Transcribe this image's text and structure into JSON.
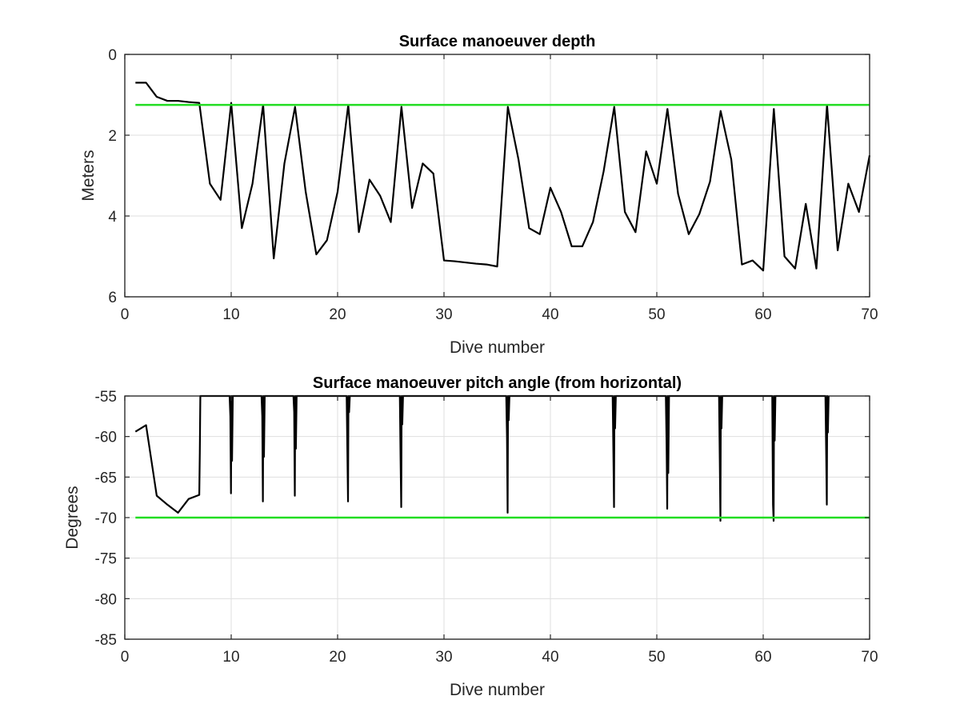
{
  "colors": {
    "data_line": "#000000",
    "threshold_line": "#22dd22",
    "grid": "#dfdfdf",
    "axes": "#262626"
  },
  "chart_data": [
    {
      "type": "line",
      "title": "Surface manoeuver depth",
      "xlabel": "Dive number",
      "ylabel": "Meters",
      "xlim": [
        0,
        70
      ],
      "ylim": [
        0,
        6
      ],
      "y_reversed": true,
      "grid": true,
      "x_ticks": [
        0,
        10,
        20,
        30,
        40,
        50,
        60,
        70
      ],
      "y_ticks": [
        0,
        2,
        4,
        6
      ],
      "series": [
        {
          "color": "#000000",
          "x": [
            1,
            2,
            3,
            4,
            5,
            6,
            7,
            8,
            9,
            10,
            11,
            12,
            13,
            14,
            15,
            16,
            17,
            18,
            19,
            20,
            21,
            22,
            23,
            24,
            25,
            26,
            27,
            28,
            29,
            30,
            31,
            32,
            33,
            34,
            35,
            36,
            37,
            38,
            39,
            40,
            41,
            42,
            43,
            44,
            45,
            46,
            47,
            48,
            49,
            50,
            51,
            52,
            53,
            54,
            55,
            56,
            57,
            58,
            59,
            60,
            61,
            62,
            63,
            64,
            65,
            66,
            67,
            68,
            69,
            70
          ],
          "y": [
            0.7,
            0.7,
            1.05,
            1.15,
            1.15,
            1.18,
            1.2,
            3.2,
            3.6,
            1.2,
            4.3,
            3.2,
            1.25,
            5.05,
            2.7,
            1.3,
            3.4,
            4.95,
            4.6,
            3.4,
            1.25,
            4.4,
            3.1,
            3.5,
            4.15,
            1.3,
            3.8,
            2.7,
            2.95,
            5.1,
            5.12,
            5.15,
            5.18,
            5.2,
            5.25,
            1.3,
            2.6,
            4.3,
            4.45,
            3.3,
            3.9,
            4.75,
            4.75,
            4.15,
            2.9,
            1.3,
            3.9,
            4.4,
            2.4,
            3.2,
            1.35,
            3.45,
            4.45,
            3.95,
            3.15,
            1.4,
            2.6,
            5.2,
            5.1,
            5.35,
            1.35,
            5.0,
            5.3,
            3.7,
            5.3,
            1.25,
            4.85,
            3.2,
            3.9,
            2.5
          ]
        },
        {
          "color": "#22dd22",
          "x": [
            1,
            70
          ],
          "y": [
            1.25,
            1.25
          ]
        }
      ]
    },
    {
      "type": "line",
      "title": "Surface manoeuver pitch angle (from horizontal)",
      "xlabel": "Dive number",
      "ylabel": "Degrees",
      "xlim": [
        0,
        70
      ],
      "ylim": [
        -85,
        -55
      ],
      "y_reversed": false,
      "grid": true,
      "x_ticks": [
        0,
        10,
        20,
        30,
        40,
        50,
        60,
        70
      ],
      "y_ticks": [
        -55,
        -60,
        -65,
        -70,
        -75,
        -80,
        -85
      ],
      "series": [
        {
          "color": "#000000",
          "x": [
            1,
            2,
            3,
            4,
            5,
            6,
            7,
            7.05,
            7.1,
            9.85,
            9.92,
            9.98,
            10.02,
            10.08,
            10.15,
            12.85,
            12.92,
            12.98,
            13.02,
            13.08,
            13.15,
            15.85,
            15.92,
            15.98,
            16.02,
            16.08,
            16.15,
            20.85,
            20.92,
            20.98,
            21.02,
            21.08,
            21.15,
            25.85,
            25.92,
            25.98,
            26.02,
            26.08,
            26.15,
            35.85,
            35.92,
            35.98,
            36.02,
            36.08,
            36.15,
            45.85,
            45.92,
            45.98,
            46.02,
            46.08,
            46.15,
            50.85,
            50.92,
            50.98,
            51.02,
            51.08,
            51.15,
            55.85,
            55.92,
            55.98,
            56.02,
            56.08,
            56.15,
            60.85,
            60.92,
            60.98,
            61.02,
            61.08,
            61.15,
            65.85,
            65.92,
            65.98,
            66.02,
            66.08,
            66.15
          ],
          "y": [
            -59.4,
            -58.6,
            -67.3,
            -68.4,
            -69.4,
            -67.7,
            -67.2,
            -62,
            -55,
            -55,
            -57.5,
            -67,
            -55,
            -63,
            -55,
            -55,
            -57.5,
            -68,
            -55,
            -62.5,
            -55,
            -55,
            -57,
            -67.3,
            -55,
            -61.5,
            -55,
            -55,
            -62,
            -68,
            -55,
            -57,
            -55,
            -55,
            -63,
            -68.7,
            -55,
            -58.5,
            -55,
            -55,
            -60,
            -69.4,
            -55,
            -58,
            -55,
            -55,
            -62,
            -68.7,
            -55,
            -59,
            -55,
            -55,
            -61,
            -68.9,
            -55,
            -64.5,
            -55,
            -55,
            -63,
            -70.4,
            -55,
            -59,
            -55,
            -55,
            -68.4,
            -70.4,
            -55,
            -60.5,
            -55,
            -55,
            -62,
            -68.4,
            -55,
            -59.5,
            -55
          ]
        },
        {
          "color": "#22dd22",
          "x": [
            1,
            70
          ],
          "y": [
            -70,
            -70
          ]
        }
      ]
    }
  ]
}
